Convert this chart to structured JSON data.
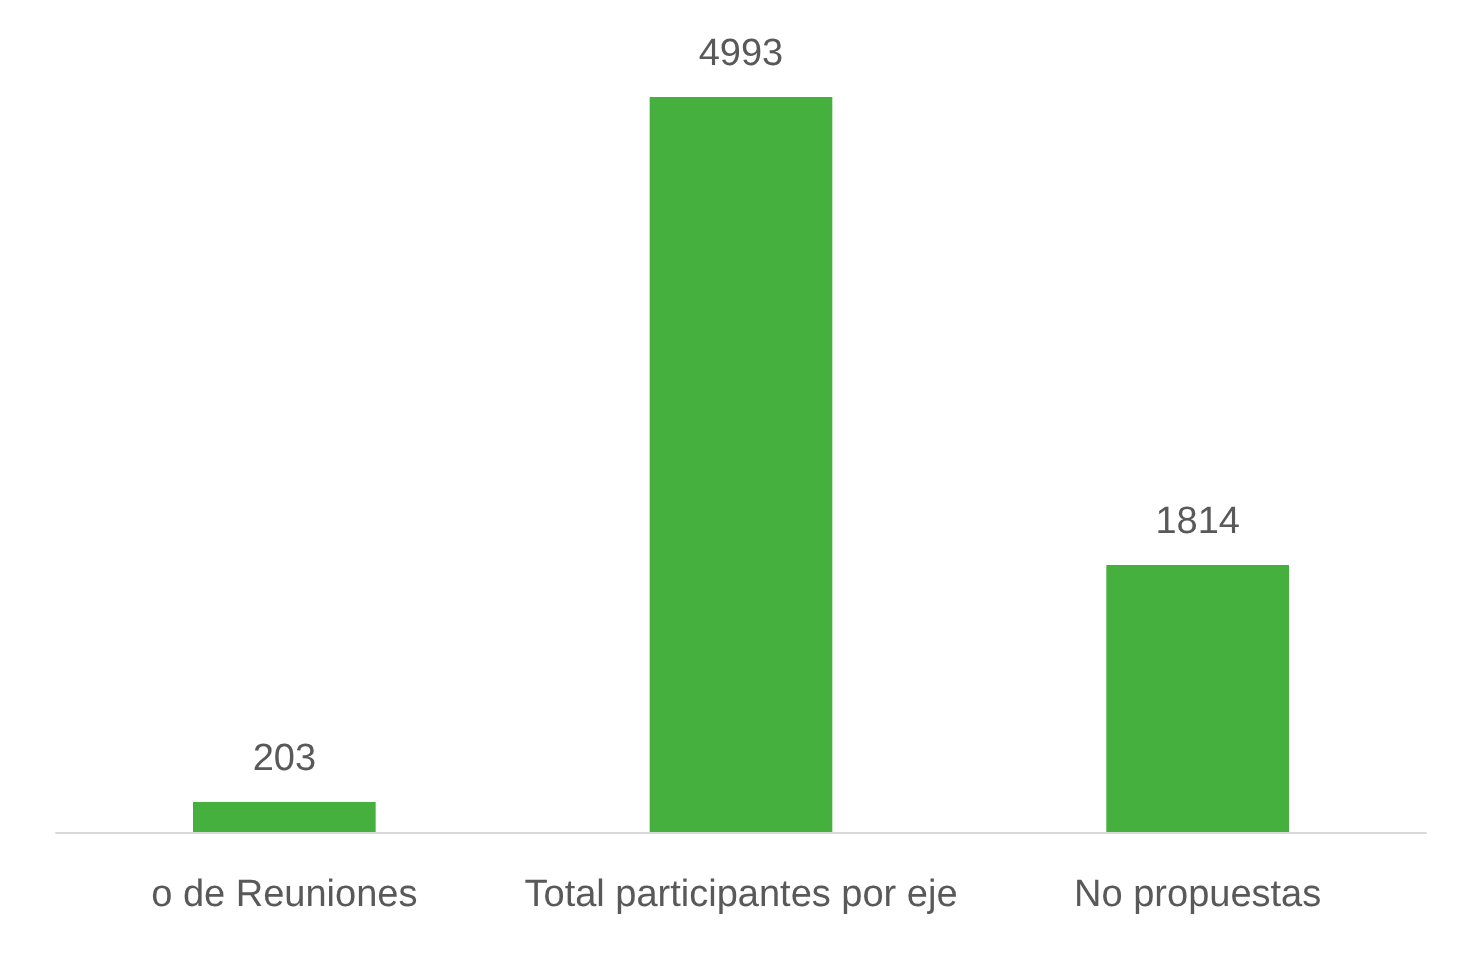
{
  "chart_data": {
    "type": "bar",
    "categories": [
      "o de Reuniones",
      "Total participantes por eje",
      "No propuestas"
    ],
    "values": [
      203,
      4993,
      1814
    ],
    "color": "#46b03e",
    "data_labels": true
  }
}
